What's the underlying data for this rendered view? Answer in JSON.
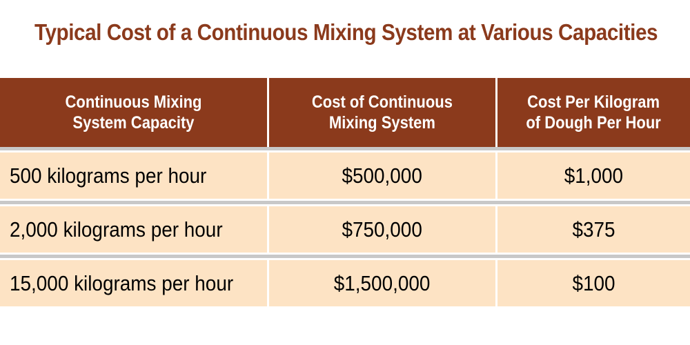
{
  "title": "Typical Cost of a Continuous Mixing System at Various Capacities",
  "colors": {
    "title": "#8b3a1c",
    "header_bg": "#8b3a1c",
    "row_bg": "#fde3c4",
    "separator": "#c8c8c8"
  },
  "table": {
    "headers": [
      "Continuous Mixing\nSystem Capacity",
      "Cost of Continuous\nMixing System",
      "Cost Per Kilogram\nof Dough Per Hour"
    ],
    "rows": [
      [
        "500 kilograms per hour",
        "$500,000",
        "$1,000"
      ],
      [
        "2,000 kilograms per hour",
        "$750,000",
        "$375"
      ],
      [
        "15,000 kilograms per hour",
        "$1,500,000",
        "$100"
      ]
    ]
  }
}
